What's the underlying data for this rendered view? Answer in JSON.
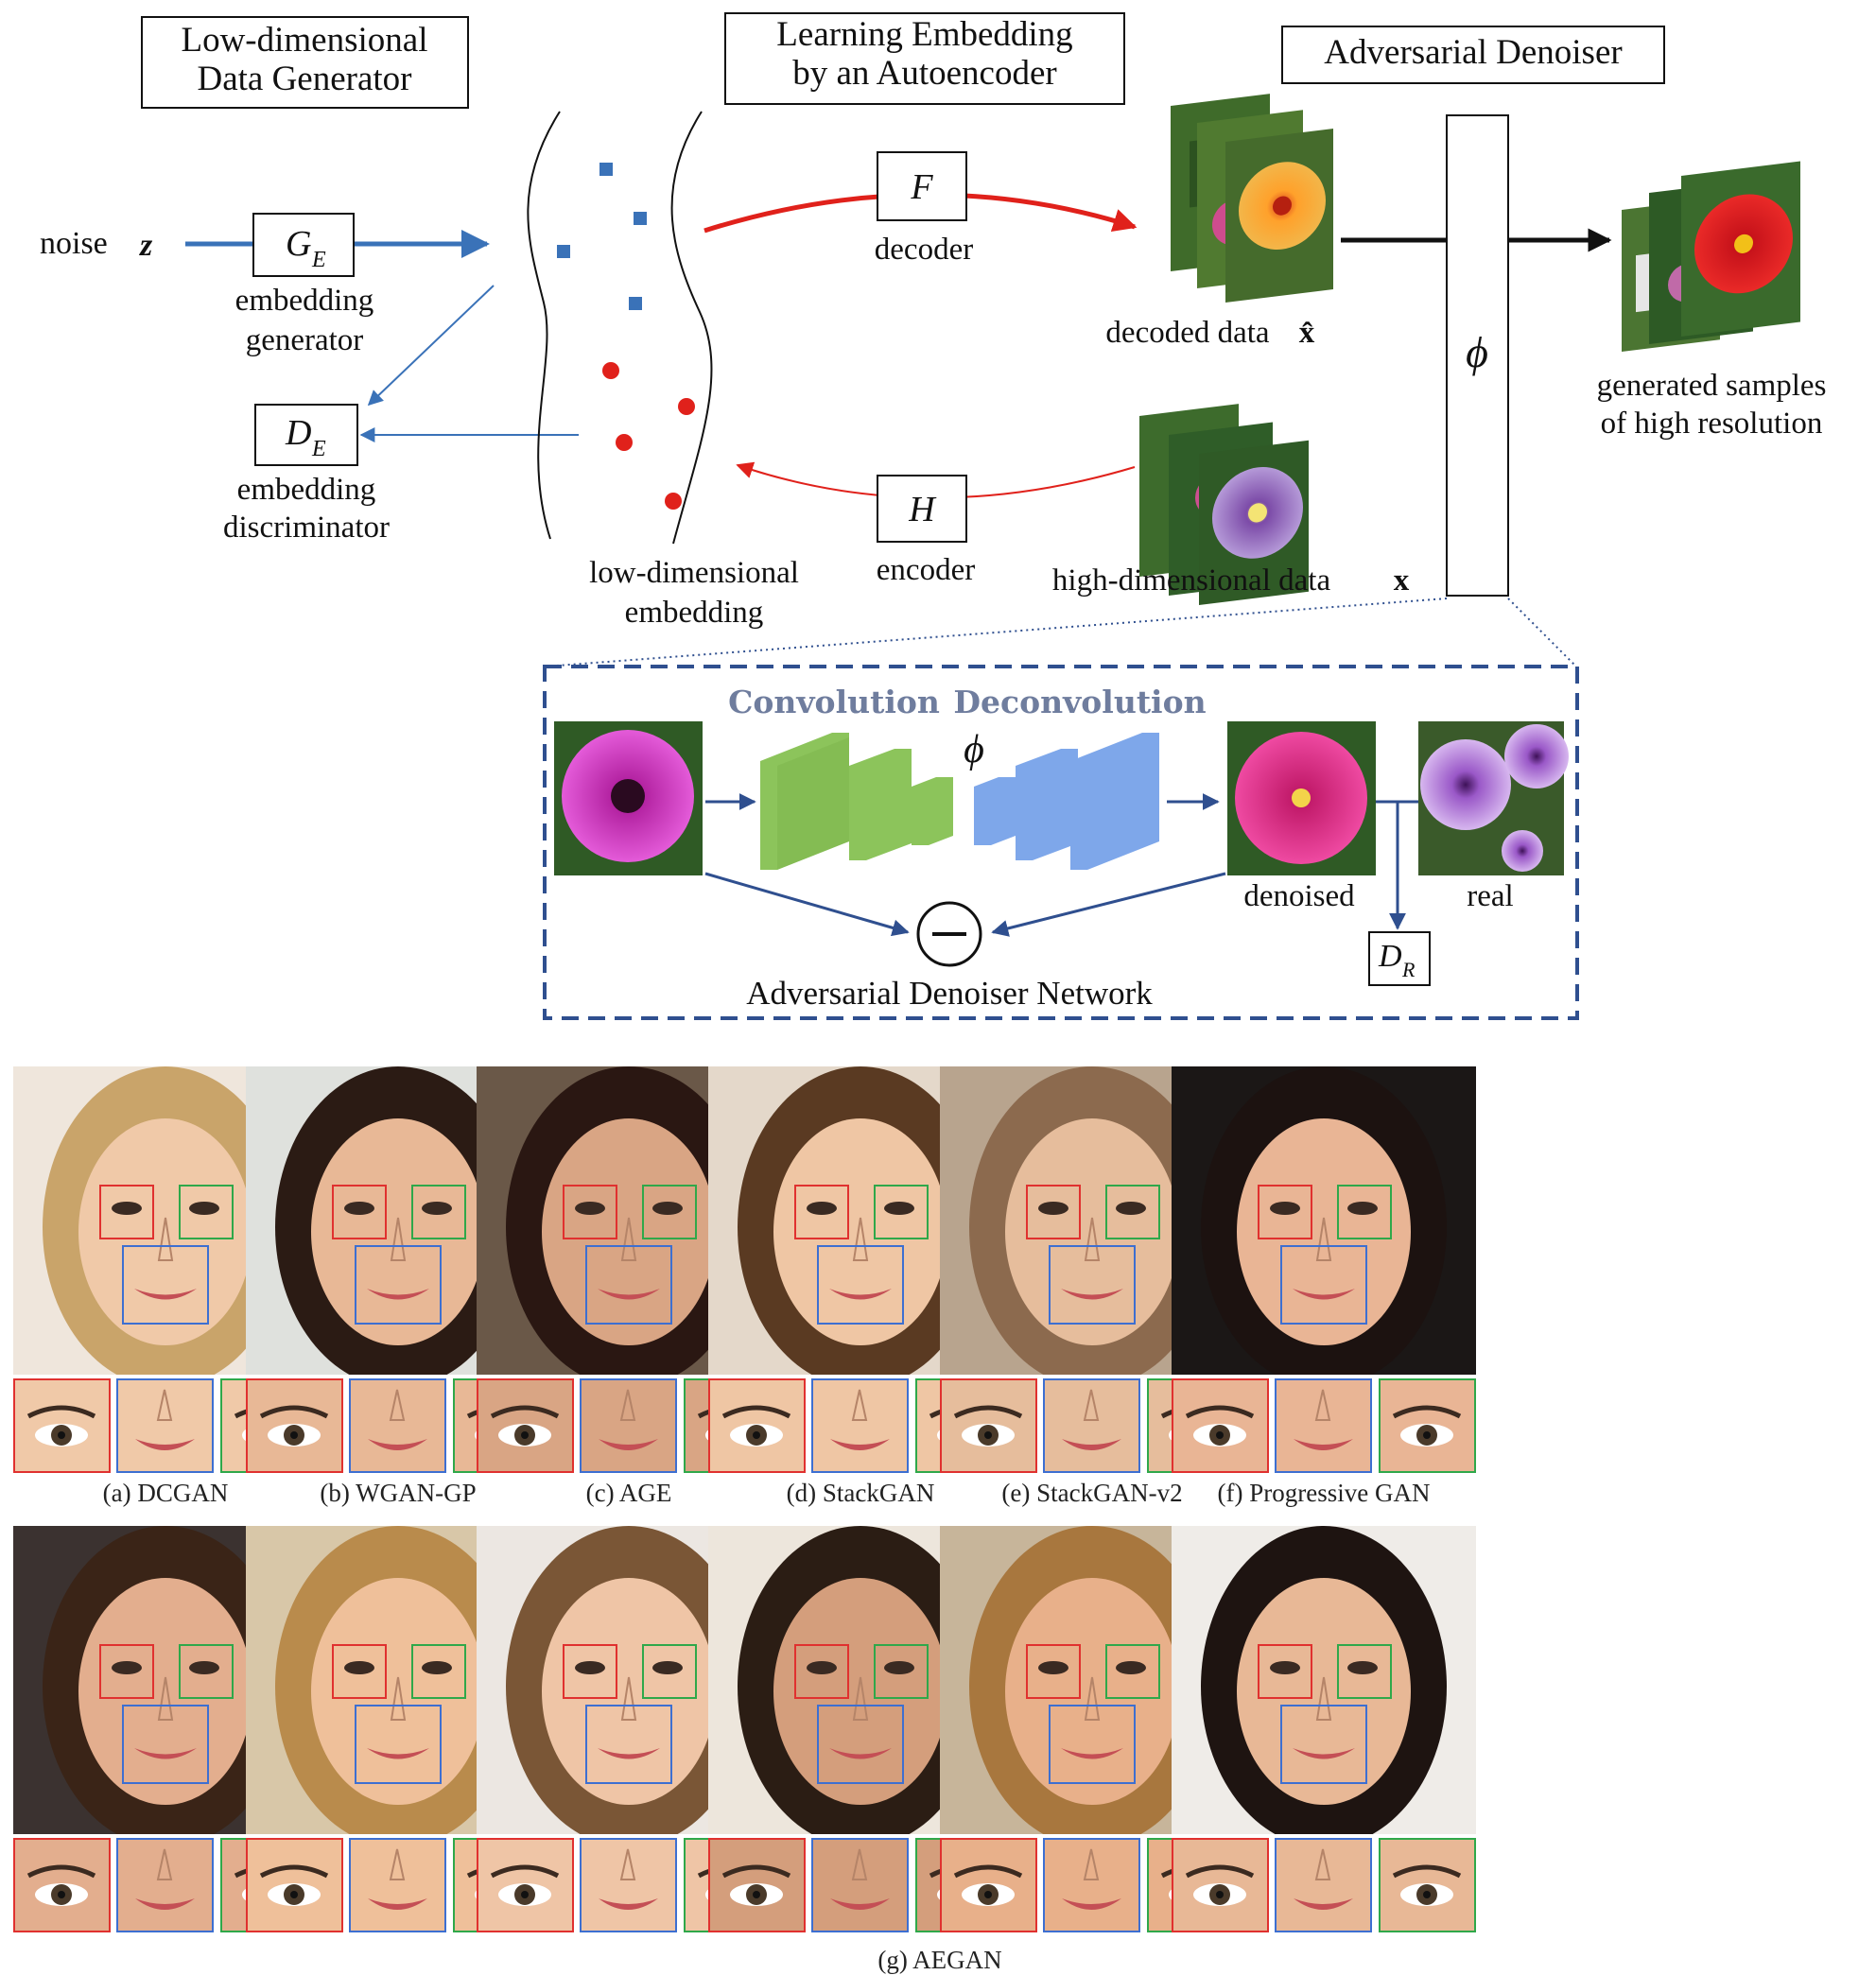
{
  "diagram": {
    "sections": {
      "generator": [
        "Low-dimensional",
        "Data Generator"
      ],
      "autoencoder": [
        "Learning Embedding",
        "by an Autoencoder"
      ],
      "denoiser": "Adversarial Denoiser"
    },
    "noise_label": "noise",
    "noise_symbol": "z",
    "embedding_generator": {
      "symbol": "G",
      "subscript": "E",
      "caption": [
        "embedding",
        "generator"
      ]
    },
    "embedding_discriminator": {
      "symbol": "D",
      "subscript": "E",
      "caption": [
        "embedding",
        "discriminator"
      ]
    },
    "embedding_caption": [
      "low-dimensional",
      "embedding"
    ],
    "decoder": {
      "symbol": "F",
      "caption": "decoder"
    },
    "encoder": {
      "symbol": "H",
      "caption": "encoder"
    },
    "decoded_data": "decoded data",
    "decoded_symbol": "x̂",
    "high_dim_data": "high-dimensional data",
    "high_dim_symbol": "x",
    "phi": "ϕ",
    "generated": [
      "generated samples",
      "of high resolution"
    ],
    "inset": {
      "convolution": "Convolution",
      "deconvolution": "Deconvolution",
      "phi": "ϕ",
      "denoised": "denoised",
      "real": "real",
      "dr_symbol": "D",
      "dr_subscript": "R",
      "network_title": "Adversarial  Denoiser  Network"
    },
    "colors": {
      "blue_arrow": "#3a72b8",
      "red_arrow": "#e0211b",
      "conv_green": "#8cc45b",
      "deconv_blue": "#7ea7ea",
      "inset_border": "#2f4f8f",
      "cnn_label": "#6f7d9e"
    }
  },
  "face_rows": [
    {
      "captions": [
        "(a)  DCGAN",
        "(b) WGAN-GP",
        "(c) AGE",
        "(d) StackGAN",
        "(e) StackGAN-v2",
        "(f) Progressive GAN"
      ]
    },
    {
      "captions": [
        "",
        "",
        "",
        "",
        "",
        ""
      ]
    }
  ],
  "final_caption": "(g) AEGAN",
  "crop_border_colors": {
    "left_eye": "#e0312f",
    "mouth": "#3d6fd1",
    "right_eye": "#2fa84a"
  }
}
